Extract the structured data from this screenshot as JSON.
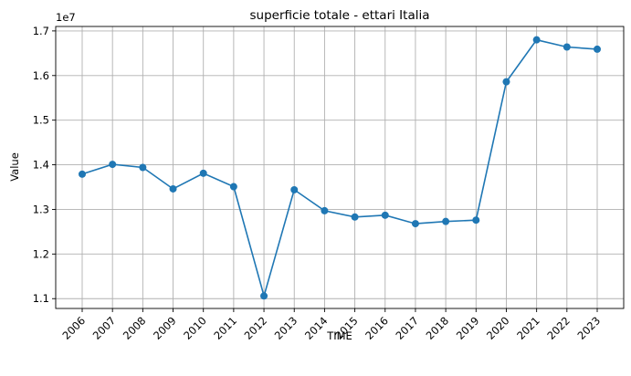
{
  "chart_data": {
    "type": "line",
    "title": "superficie totale - ettari Italia",
    "xlabel": "TIME",
    "ylabel": "Value",
    "y_offset_label": "1e7",
    "y_scale": 10000000,
    "categories": [
      "2006",
      "2007",
      "2008",
      "2009",
      "2010",
      "2011",
      "2012",
      "2013",
      "2014",
      "2015",
      "2016",
      "2017",
      "2018",
      "2019",
      "2020",
      "2021",
      "2022",
      "2023"
    ],
    "series": [
      {
        "values": [
          13790000,
          14010000,
          13940000,
          13460000,
          13810000,
          13510000,
          11060000,
          13440000,
          12970000,
          12830000,
          12870000,
          12680000,
          12730000,
          12760000,
          15860000,
          16800000,
          16640000,
          16590000
        ]
      }
    ],
    "ylim": [
      10780000,
      17100000
    ],
    "yticks": [
      11000000,
      12000000,
      13000000,
      14000000,
      15000000,
      16000000,
      17000000
    ],
    "ytick_labels": [
      "1.1",
      "1.2",
      "1.3",
      "1.4",
      "1.5",
      "1.6",
      "1.7"
    ],
    "grid": true,
    "x_tick_rotation_deg": 45,
    "colors": {
      "series": "#1f77b4",
      "grid": "#b0b0b0"
    }
  }
}
